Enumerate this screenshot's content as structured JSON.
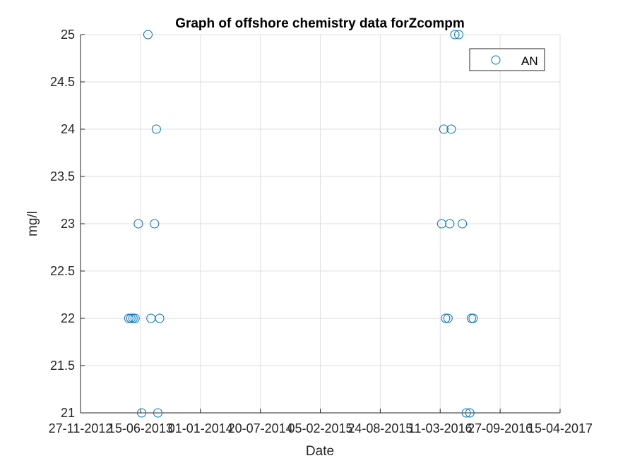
{
  "chart_data": {
    "type": "scatter",
    "title": "Graph of offshore chemistry data forZcompm",
    "xlabel": "Date",
    "ylabel": "mg/l",
    "x_axis_type": "date",
    "xlim": [
      "2012-11-27",
      "2017-04-15"
    ],
    "ylim": [
      21,
      25
    ],
    "x_ticks": [
      "2012-11-27",
      "2013-06-15",
      "2014-01-01",
      "2014-07-20",
      "2015-02-05",
      "2015-08-24",
      "2016-03-11",
      "2016-09-27",
      "2017-04-15"
    ],
    "x_tick_labels": [
      "27-11-2012",
      "15-06-2013",
      "01-01-2014",
      "20-07-2014",
      "05-02-2015",
      "24-08-2015",
      "11-03-2016",
      "27-09-2016",
      "15-04-2017"
    ],
    "y_ticks": [
      21,
      21.5,
      22,
      22.5,
      23,
      23.5,
      24,
      24.5,
      25
    ],
    "y_tick_labels": [
      "21",
      "21.5",
      "22",
      "22.5",
      "23",
      "23.5",
      "24",
      "24.5",
      "25"
    ],
    "grid": true,
    "legend_position": "top-right",
    "marker_color": "#0072BD",
    "series": [
      {
        "name": "AN",
        "marker": "circle",
        "points": [
          {
            "x": "2013-05-07",
            "y": 22
          },
          {
            "x": "2013-05-14",
            "y": 22
          },
          {
            "x": "2013-05-21",
            "y": 22
          },
          {
            "x": "2013-05-28",
            "y": 22
          },
          {
            "x": "2013-06-08",
            "y": 23
          },
          {
            "x": "2013-06-19",
            "y": 21
          },
          {
            "x": "2013-07-10",
            "y": 25
          },
          {
            "x": "2013-07-20",
            "y": 22
          },
          {
            "x": "2013-08-01",
            "y": 23
          },
          {
            "x": "2013-08-07",
            "y": 24
          },
          {
            "x": "2013-08-12",
            "y": 21
          },
          {
            "x": "2013-08-18",
            "y": 22
          },
          {
            "x": "2016-03-16",
            "y": 23
          },
          {
            "x": "2016-03-23",
            "y": 24
          },
          {
            "x": "2016-03-29",
            "y": 22
          },
          {
            "x": "2016-04-06",
            "y": 22
          },
          {
            "x": "2016-04-12",
            "y": 23
          },
          {
            "x": "2016-04-17",
            "y": 24
          },
          {
            "x": "2016-04-29",
            "y": 25
          },
          {
            "x": "2016-05-12",
            "y": 25
          },
          {
            "x": "2016-05-24",
            "y": 23
          },
          {
            "x": "2016-06-06",
            "y": 21
          },
          {
            "x": "2016-06-18",
            "y": 21
          },
          {
            "x": "2016-06-23",
            "y": 22
          },
          {
            "x": "2016-06-29",
            "y": 22
          }
        ]
      }
    ]
  }
}
